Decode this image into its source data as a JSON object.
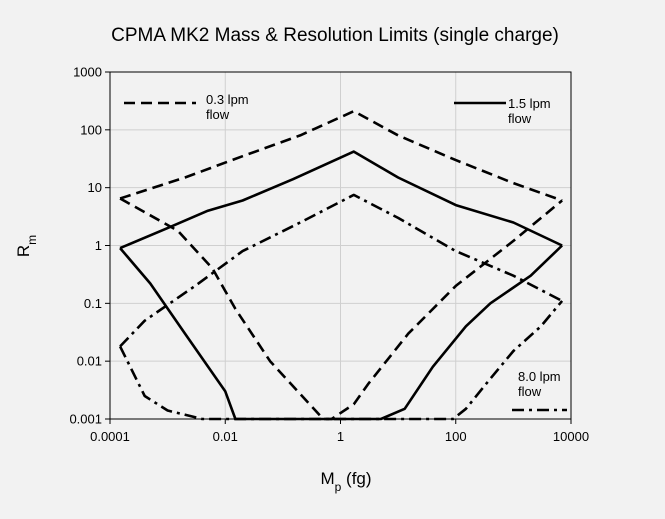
{
  "chart_data": {
    "type": "line",
    "title": "CPMA MK2 Mass & Resolution Limits (single charge)",
    "xlabel": {
      "main": "M",
      "sub": "p",
      "suffix": " (fg)"
    },
    "ylabel": {
      "main": "R",
      "sub": "m"
    },
    "x_scale": "log",
    "y_scale": "log",
    "xlim": [
      0.0001,
      10000
    ],
    "ylim": [
      0.001,
      1000
    ],
    "x_ticks": [
      {
        "value": 0.0001,
        "label": "0.0001"
      },
      {
        "value": 0.01,
        "label": "0.01"
      },
      {
        "value": 1,
        "label": "1"
      },
      {
        "value": 100,
        "label": "100"
      },
      {
        "value": 10000,
        "label": "10000"
      }
    ],
    "y_ticks": [
      {
        "value": 0.001,
        "label": "0.001"
      },
      {
        "value": 0.01,
        "label": "0.01"
      },
      {
        "value": 0.1,
        "label": "0.1"
      },
      {
        "value": 1,
        "label": "1"
      },
      {
        "value": 10,
        "label": "10"
      },
      {
        "value": 100,
        "label": "100"
      },
      {
        "value": 1000,
        "label": "1000"
      }
    ],
    "grid": true,
    "series": [
      {
        "name": "0.3 lpm flow",
        "legend_lines": [
          "0.3 lpm",
          "flow"
        ],
        "legend_position": "top-left",
        "dash": "dashed",
        "upper": [
          [
            0.00015,
            6.5
          ],
          [
            0.002,
            15
          ],
          [
            0.02,
            35
          ],
          [
            0.2,
            80
          ],
          [
            1.7,
            210
          ],
          [
            10,
            80
          ],
          [
            100,
            30
          ],
          [
            1000,
            12
          ],
          [
            7000,
            6
          ]
        ],
        "lower": [
          [
            0.00015,
            6.5
          ],
          [
            0.0015,
            1.8
          ],
          [
            0.006,
            0.4
          ],
          [
            0.015,
            0.08
          ],
          [
            0.06,
            0.01
          ],
          [
            0.5,
            0.001
          ],
          [
            0.7,
            0.001
          ],
          [
            1.7,
            0.0018
          ],
          [
            3,
            0.004
          ],
          [
            15,
            0.03
          ],
          [
            100,
            0.2
          ],
          [
            1000,
            1.2
          ],
          [
            7000,
            6
          ]
        ]
      },
      {
        "name": "1.5 lpm flow",
        "legend_lines": [
          "1.5 lpm",
          "flow"
        ],
        "legend_position": "top-right",
        "dash": "solid",
        "upper": [
          [
            0.00015,
            0.9
          ],
          [
            0.001,
            2
          ],
          [
            0.005,
            4
          ],
          [
            0.02,
            6
          ],
          [
            0.15,
            14
          ],
          [
            1.7,
            42
          ],
          [
            10,
            15
          ],
          [
            100,
            5
          ],
          [
            1000,
            2.5
          ],
          [
            7000,
            1
          ]
        ],
        "lower": [
          [
            0.00015,
            0.9
          ],
          [
            0.0005,
            0.22
          ],
          [
            0.002,
            0.03
          ],
          [
            0.01,
            0.003
          ],
          [
            0.015,
            0.001
          ],
          [
            5,
            0.001
          ],
          [
            13,
            0.0015
          ],
          [
            40,
            0.008
          ],
          [
            150,
            0.04
          ],
          [
            400,
            0.1
          ],
          [
            2000,
            0.3
          ],
          [
            7000,
            1
          ]
        ]
      },
      {
        "name": "8.0 lpm flow",
        "legend_lines": [
          "8.0 lpm",
          "flow"
        ],
        "legend_position": "bottom-right",
        "dash": "dash-dot",
        "upper": [
          [
            0.00015,
            0.018
          ],
          [
            0.0004,
            0.05
          ],
          [
            0.003,
            0.2
          ],
          [
            0.02,
            0.8
          ],
          [
            0.2,
            2.5
          ],
          [
            1.7,
            7.5
          ],
          [
            10,
            3
          ],
          [
            100,
            0.8
          ],
          [
            1000,
            0.3
          ],
          [
            7000,
            0.11
          ]
        ],
        "lower": [
          [
            0.00015,
            0.018
          ],
          [
            0.0004,
            0.0025
          ],
          [
            0.001,
            0.0014
          ],
          [
            0.004,
            0.001
          ],
          [
            90,
            0.001
          ],
          [
            150,
            0.0015
          ],
          [
            400,
            0.005
          ],
          [
            1000,
            0.015
          ],
          [
            3000,
            0.04
          ],
          [
            7000,
            0.11
          ]
        ]
      }
    ]
  }
}
